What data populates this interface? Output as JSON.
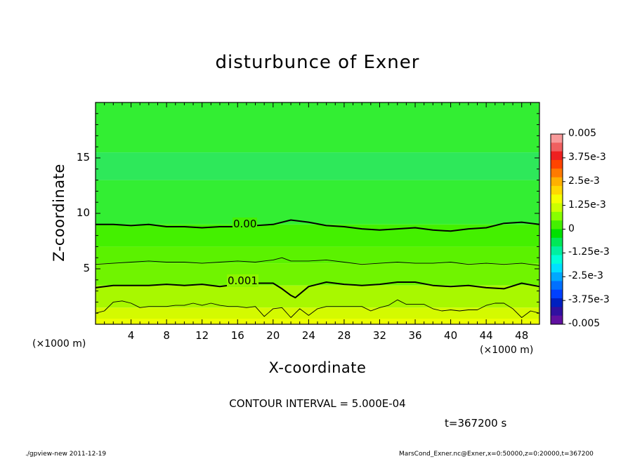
{
  "chart_data": {
    "type": "heatmap",
    "title": "disturbunce of Exner",
    "xlabel": "X-coordinate",
    "ylabel": "Z-coordinate",
    "x_unit_left": "(×1000 m)",
    "x_unit_right": "(×1000 m)",
    "xlim": [
      0,
      50
    ],
    "ylim": [
      0,
      20
    ],
    "x_ticks": [
      "4",
      "8",
      "12",
      "16",
      "20",
      "24",
      "28",
      "32",
      "36",
      "40",
      "44",
      "48"
    ],
    "y_ticks": [
      "5",
      "10",
      "15"
    ],
    "contour_interval_text": "CONTOUR INTERVAL = 5.000E-04",
    "time_text": "t=367200 s",
    "contour_labels": [
      "0.00",
      "0.001"
    ],
    "colorbar": {
      "labels": [
        "0.005",
        "3.75e-3",
        "2.5e-3",
        "1.25e-3",
        "0",
        "-1.25e-3",
        "-2.5e-3",
        "-3.75e-3",
        "-0.005"
      ],
      "levels": [
        0.005,
        0.00375,
        0.0025,
        0.00125,
        0,
        -0.00125,
        -0.0025,
        -0.00375,
        -0.005
      ],
      "colors_top_to_bottom": [
        "#f89a9a",
        "#f06060",
        "#ee2020",
        "#ff4400",
        "#ff7a00",
        "#ffb000",
        "#ffd800",
        "#f5ff00",
        "#ccff00",
        "#88ff00",
        "#44f000",
        "#00e000",
        "#00e858",
        "#00f0a0",
        "#00ffd8",
        "#00e0ff",
        "#00a8ff",
        "#0070ff",
        "#0040ff",
        "#0020c0",
        "#3010a0",
        "#6010a0"
      ]
    },
    "bands": [
      {
        "z_top": 20,
        "value": 0.0001,
        "color": "#33ee33"
      },
      {
        "z_top": 15.5,
        "value": -0.0001,
        "color": "#2ee85a"
      },
      {
        "z_top": 13,
        "value": 0.0001,
        "color": "#33ee33"
      },
      {
        "z_top": 9,
        "value": 0.0003,
        "color": "#44f000"
      },
      {
        "z_top": 7,
        "value": 0.0006,
        "color": "#5bf200"
      },
      {
        "z_top": 5.5,
        "value": 0.0008,
        "color": "#70f400"
      },
      {
        "z_top": 3.5,
        "value": 0.0011,
        "color": "#a8f800"
      },
      {
        "z_top": 1.5,
        "value": 0.0014,
        "color": "#d4fa00"
      }
    ],
    "contours": [
      {
        "level": 0.0,
        "style": "thick",
        "x": [
          0,
          2,
          4,
          6,
          8,
          10,
          12,
          14,
          16,
          18,
          20,
          22,
          24,
          26,
          28,
          30,
          32,
          34,
          36,
          38,
          40,
          42,
          44,
          46,
          48,
          50
        ],
        "z": [
          9.0,
          9.0,
          8.9,
          9.0,
          8.8,
          8.8,
          8.7,
          8.8,
          8.8,
          8.9,
          9.0,
          9.4,
          9.2,
          8.9,
          8.8,
          8.6,
          8.5,
          8.6,
          8.7,
          8.5,
          8.4,
          8.6,
          8.7,
          9.1,
          9.2,
          9.0
        ]
      },
      {
        "level": 0.0005,
        "style": "thin",
        "x": [
          0,
          2,
          4,
          6,
          8,
          10,
          12,
          14,
          16,
          18,
          20,
          21,
          22,
          24,
          26,
          28,
          30,
          32,
          34,
          36,
          38,
          40,
          42,
          44,
          46,
          48,
          50
        ],
        "z": [
          5.4,
          5.5,
          5.6,
          5.7,
          5.6,
          5.6,
          5.5,
          5.6,
          5.7,
          5.6,
          5.8,
          6.0,
          5.7,
          5.7,
          5.8,
          5.6,
          5.4,
          5.5,
          5.6,
          5.5,
          5.5,
          5.6,
          5.4,
          5.5,
          5.4,
          5.5,
          5.3
        ]
      },
      {
        "level": 0.001,
        "style": "thick",
        "x": [
          0,
          2,
          4,
          6,
          8,
          10,
          12,
          14,
          16,
          18,
          20,
          21,
          22,
          22.5,
          24,
          26,
          28,
          30,
          32,
          34,
          36,
          38,
          40,
          42,
          44,
          46,
          48,
          50
        ],
        "z": [
          3.3,
          3.5,
          3.5,
          3.5,
          3.6,
          3.5,
          3.6,
          3.4,
          3.6,
          3.7,
          3.7,
          3.2,
          2.6,
          2.4,
          3.4,
          3.8,
          3.6,
          3.5,
          3.6,
          3.8,
          3.8,
          3.5,
          3.4,
          3.5,
          3.3,
          3.2,
          3.7,
          3.4
        ]
      },
      {
        "level": 0.0015,
        "style": "thin",
        "x": [
          0,
          1,
          2,
          3,
          4,
          5,
          6,
          7,
          8,
          9,
          10,
          11,
          12,
          13,
          14,
          15,
          16,
          17,
          18,
          19,
          20,
          21,
          22,
          23,
          24,
          25,
          26,
          27,
          28,
          29,
          30,
          31,
          32,
          33,
          34,
          35,
          36,
          37,
          38,
          39,
          40,
          41,
          42,
          43,
          44,
          45,
          46,
          47,
          48,
          49,
          50
        ],
        "z": [
          1.0,
          1.2,
          2.0,
          2.1,
          1.9,
          1.5,
          1.6,
          1.6,
          1.6,
          1.7,
          1.7,
          1.9,
          1.7,
          1.9,
          1.7,
          1.6,
          1.6,
          1.5,
          1.6,
          0.7,
          1.4,
          1.5,
          0.6,
          1.4,
          0.8,
          1.4,
          1.6,
          1.6,
          1.6,
          1.6,
          1.6,
          1.2,
          1.5,
          1.7,
          2.2,
          1.8,
          1.8,
          1.8,
          1.4,
          1.2,
          1.3,
          1.2,
          1.3,
          1.3,
          1.7,
          1.9,
          1.9,
          1.4,
          0.6,
          1.2,
          1.0
        ]
      }
    ],
    "grid": false,
    "legend_placement": "right-colorbar"
  },
  "footer": {
    "left": "./gpview-new   2011-12-19",
    "right": "MarsCond_Exner.nc@Exner,x=0:50000,z=0:20000,t=367200"
  }
}
